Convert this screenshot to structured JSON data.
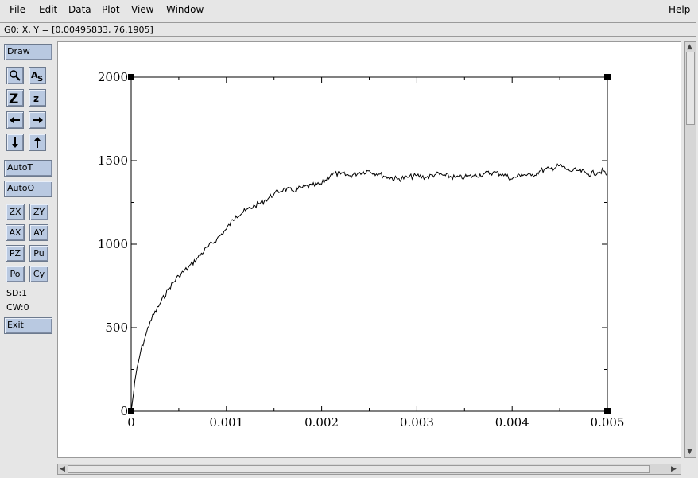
{
  "menu": {
    "file": "File",
    "edit": "Edit",
    "data": "Data",
    "plot": "Plot",
    "view": "View",
    "window": "Window",
    "help": "Help"
  },
  "status": {
    "coords": "G0: X, Y = [0.00495833, 76.1905]"
  },
  "toolbar": {
    "draw": "Draw",
    "autot": "AutoT",
    "autoo": "AutoO",
    "zx": "ZX",
    "zy": "ZY",
    "ax": "AX",
    "ay": "AY",
    "pz": "PZ",
    "pu": "Pu",
    "po": "Po",
    "cy": "Cy",
    "sd": "SD:1",
    "cw": "CW:0",
    "exit": "Exit",
    "icons": [
      "zoom-icon",
      "autoscale-text-icon",
      "zoom-in-icon",
      "zoom-out-icon",
      "left-arrow-icon",
      "right-arrow-icon",
      "down-arrow-icon",
      "up-arrow-icon"
    ]
  },
  "chart_data": {
    "type": "line",
    "title": "",
    "xlabel": "",
    "ylabel": "",
    "xlim": [
      0,
      0.005
    ],
    "ylim": [
      0,
      2000
    ],
    "x_ticks": [
      "0",
      "0.001",
      "0.002",
      "0.003",
      "0.004",
      "0.005"
    ],
    "y_ticks": [
      "0",
      "500",
      "1000",
      "1500",
      "2000"
    ],
    "grid": false,
    "series": [
      {
        "color": "#000000",
        "x": [
          0,
          5e-05,
          0.0001,
          0.00015,
          0.0002,
          0.0003,
          0.0004,
          0.0005,
          0.0006,
          0.0007,
          0.0008,
          0.0009,
          0.001,
          0.0011,
          0.0012,
          0.0013,
          0.0014,
          0.0015,
          0.0016,
          0.0017,
          0.0018,
          0.0019,
          0.002,
          0.0021,
          0.0022,
          0.0023,
          0.0024,
          0.0025,
          0.0026,
          0.0027,
          0.0028,
          0.0029,
          0.003,
          0.0031,
          0.0032,
          0.0033,
          0.0034,
          0.0035,
          0.0036,
          0.0037,
          0.0038,
          0.0039,
          0.004,
          0.0041,
          0.0042,
          0.0043,
          0.0044,
          0.0045,
          0.0046,
          0.0047,
          0.0048,
          0.0049,
          0.00495833,
          0.005
        ],
        "y": [
          0,
          220,
          360,
          450,
          540,
          640,
          740,
          810,
          860,
          920,
          980,
          1030,
          1090,
          1170,
          1200,
          1230,
          1260,
          1300,
          1330,
          1320,
          1340,
          1350,
          1360,
          1420,
          1420,
          1410,
          1430,
          1440,
          1420,
          1400,
          1390,
          1400,
          1410,
          1400,
          1420,
          1410,
          1400,
          1400,
          1410,
          1420,
          1430,
          1420,
          1390,
          1420,
          1410,
          1440,
          1450,
          1470,
          1440,
          1440,
          1420,
          1430,
          1440,
          1410
        ]
      }
    ]
  }
}
